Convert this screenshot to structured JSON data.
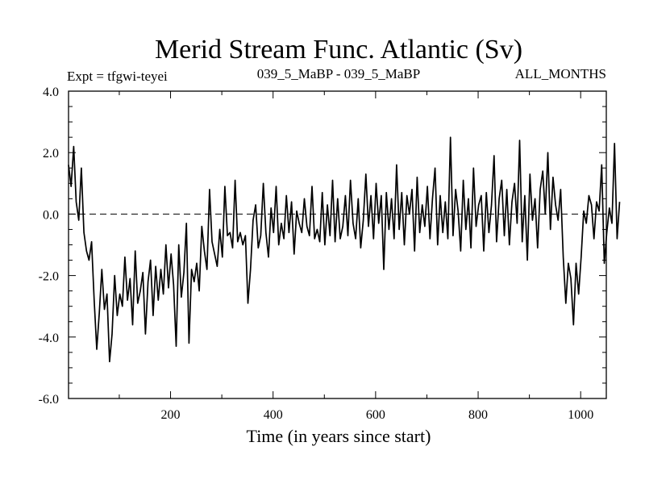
{
  "chart_data": {
    "type": "line",
    "title": "Merid Stream Func. Atlantic (Sv)",
    "subtitle_left": "Expt = tfgwi-teyei",
    "subtitle_center": "039_5_MaBP - 039_5_MaBP",
    "subtitle_right": "ALL_MONTHS",
    "xlabel": "Time (in years since start)",
    "ylabel": "",
    "xlim": [
      1,
      1050
    ],
    "ylim": [
      -6.0,
      4.0
    ],
    "x_ticks": [
      200,
      400,
      600,
      800,
      1000
    ],
    "x_tick_labels": [
      "200",
      "400",
      "600",
      "800",
      "1000"
    ],
    "y_ticks": [
      4.0,
      2.0,
      0.0,
      -2.0,
      -4.0,
      -6.0
    ],
    "y_tick_labels": [
      "4.0",
      "2.0",
      "0.0",
      "-2.0",
      "-4.0",
      "-6.0"
    ],
    "reference_line": {
      "y": 0.0,
      "style": "dashed"
    },
    "grid": false,
    "series": [
      {
        "name": "Merid Stream Func. Atlantic",
        "x_start": 1,
        "x_step": 5,
        "values": [
          1.6,
          0.9,
          2.2,
          0.4,
          -0.2,
          1.5,
          -0.6,
          -1.2,
          -1.5,
          -0.9,
          -2.8,
          -4.4,
          -3.2,
          -1.8,
          -3.1,
          -2.6,
          -4.8,
          -3.9,
          -2.0,
          -3.3,
          -2.6,
          -3.0,
          -1.4,
          -2.8,
          -2.1,
          -3.6,
          -1.2,
          -2.9,
          -2.5,
          -1.9,
          -3.9,
          -2.2,
          -1.5,
          -3.3,
          -1.7,
          -2.8,
          -1.8,
          -2.6,
          -1.0,
          -2.4,
          -1.3,
          -2.3,
          -4.3,
          -1.0,
          -2.7,
          -1.9,
          -0.3,
          -4.2,
          -1.8,
          -2.2,
          -1.6,
          -2.5,
          -0.4,
          -1.2,
          -1.8,
          0.8,
          -0.9,
          -1.3,
          -1.7,
          -0.5,
          -1.4,
          0.9,
          -0.7,
          -0.6,
          -1.1,
          1.1,
          -0.9,
          -0.6,
          -1.0,
          -0.7,
          -2.9,
          -1.8,
          -0.2,
          0.3,
          -1.1,
          -0.7,
          1.0,
          -0.6,
          -1.4,
          0.2,
          -0.6,
          0.9,
          -1.0,
          -0.3,
          -0.8,
          0.6,
          -0.6,
          0.4,
          -1.3,
          0.1,
          -0.3,
          -0.6,
          0.5,
          -0.4,
          -0.7,
          0.9,
          -0.8,
          -0.5,
          -0.9,
          0.7,
          -1.0,
          0.3,
          -0.7,
          1.1,
          -0.9,
          0.5,
          -0.8,
          -0.4,
          0.6,
          -0.7,
          1.1,
          -0.3,
          -0.8,
          0.5,
          -1.1,
          -0.2,
          1.3,
          -0.4,
          0.6,
          -0.8,
          1.0,
          -0.3,
          0.6,
          -1.8,
          0.7,
          -0.5,
          0.5,
          -0.8,
          1.6,
          -0.5,
          0.7,
          -1.0,
          0.6,
          0.0,
          0.8,
          -1.2,
          1.2,
          -0.6,
          0.3,
          -0.4,
          0.9,
          -0.8,
          0.5,
          1.5,
          -1.0,
          0.6,
          -0.6,
          0.4,
          -0.8,
          2.5,
          -0.7,
          0.8,
          0.1,
          -1.2,
          1.1,
          -0.5,
          0.5,
          -1.1,
          1.5,
          -0.4,
          0.3,
          0.6,
          -1.2,
          0.7,
          -0.6,
          0.3,
          1.9,
          -0.9,
          0.5,
          1.1,
          -0.7,
          0.8,
          -1.0,
          0.4,
          1.0,
          -0.3,
          2.4,
          -0.9,
          0.6,
          -1.5,
          1.3,
          -0.2,
          0.5,
          -1.1,
          0.8,
          1.4,
          0.0,
          2.0,
          -0.5,
          1.2,
          0.3,
          -0.2,
          0.8,
          -1.4,
          -2.9,
          -1.6,
          -2.1,
          -3.6,
          -1.6,
          -2.6,
          -1.4,
          0.1,
          -0.3,
          0.6,
          0.3,
          -0.8,
          0.4,
          0.1,
          1.6,
          -1.6,
          -0.6,
          0.2,
          -0.3,
          2.3,
          -0.8,
          0.4
        ]
      }
    ]
  }
}
